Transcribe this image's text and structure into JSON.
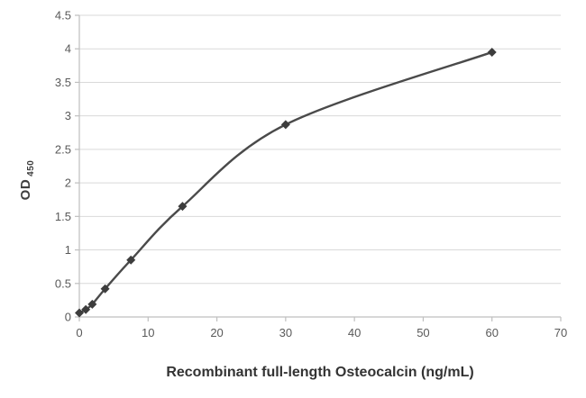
{
  "chart_data": {
    "type": "line",
    "title": "",
    "xlabel": "Recombinant full-length Osteocalcin (ng/mL)",
    "ylabel": "OD",
    "ylabel_subscript": "450",
    "x": [
      0,
      0.94,
      1.88,
      3.75,
      7.5,
      15,
      30,
      60
    ],
    "y": [
      0.06,
      0.11,
      0.19,
      0.42,
      0.85,
      1.65,
      2.87,
      3.95
    ],
    "xlim": [
      0,
      70
    ],
    "ylim": [
      0,
      4.5
    ],
    "x_ticks": [
      0,
      10,
      20,
      30,
      40,
      50,
      60,
      70
    ],
    "y_ticks": [
      0,
      0.5,
      1,
      1.5,
      2,
      2.5,
      3,
      3.5,
      4,
      4.5
    ],
    "grid": "horizontal",
    "legend": "none",
    "marker": "diamond",
    "line_color": "#4a4a4a",
    "marker_color": "#3d3d3d",
    "gridline_color": "#d9d9d9",
    "axis_color": "#bfbfbf",
    "tick_label_color": "#595959",
    "background": "#ffffff"
  }
}
